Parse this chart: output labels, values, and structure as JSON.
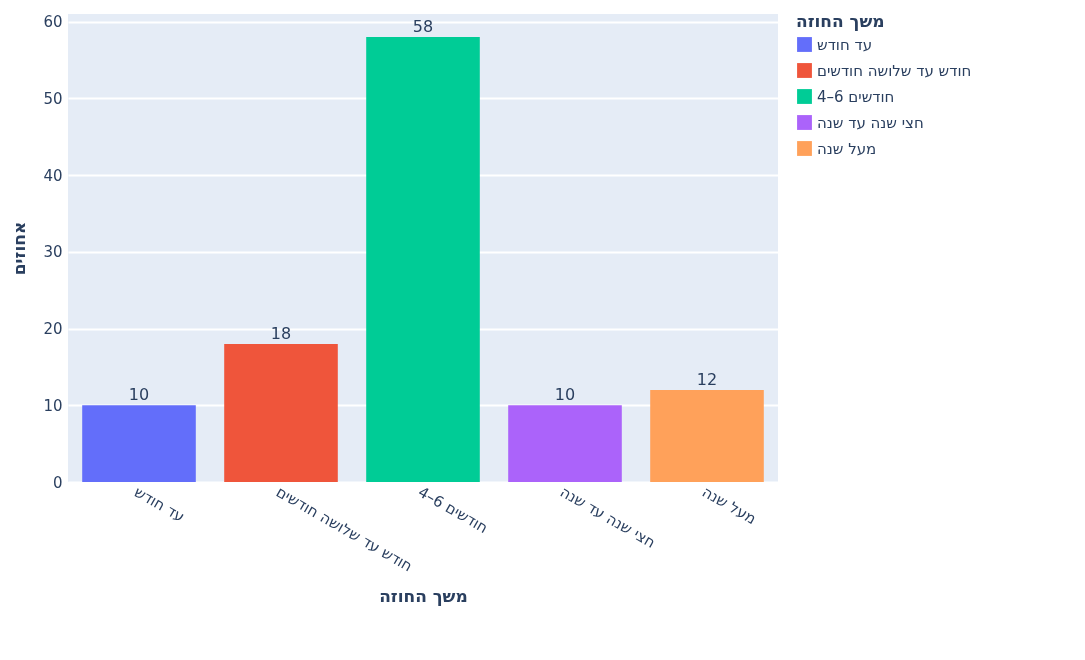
{
  "chart_data": {
    "type": "bar",
    "xlabel": "משך החוזה",
    "ylabel": "אחוזים",
    "legend_title": "משך החוזה",
    "categories": [
      "עד חודש",
      "חודש עד שלושה חודשים",
      "4–6 חודשים",
      "חצי שנה עד שנה",
      "מעל שנה"
    ],
    "series": [
      {
        "name": "עד חודש",
        "color": "#636efa",
        "values": [
          10,
          null,
          null,
          null,
          null
        ]
      },
      {
        "name": "חודש עד שלושה חודשים",
        "color": "#ef553b",
        "values": [
          null,
          18,
          null,
          null,
          null
        ]
      },
      {
        "name": "4–6 חודשים",
        "color": "#00cc96",
        "values": [
          null,
          null,
          58,
          null,
          null
        ]
      },
      {
        "name": "חצי שנה עד שנה",
        "color": "#ab63fa",
        "values": [
          null,
          null,
          null,
          10,
          null
        ]
      },
      {
        "name": "מעל שנה",
        "color": "#ffa15a",
        "values": [
          null,
          null,
          null,
          null,
          12
        ]
      }
    ],
    "ylim": [
      0,
      61
    ],
    "yticks": [
      0,
      10,
      20,
      30,
      40,
      50,
      60
    ],
    "grid": "y",
    "legend": "top right",
    "data_labels": true
  }
}
